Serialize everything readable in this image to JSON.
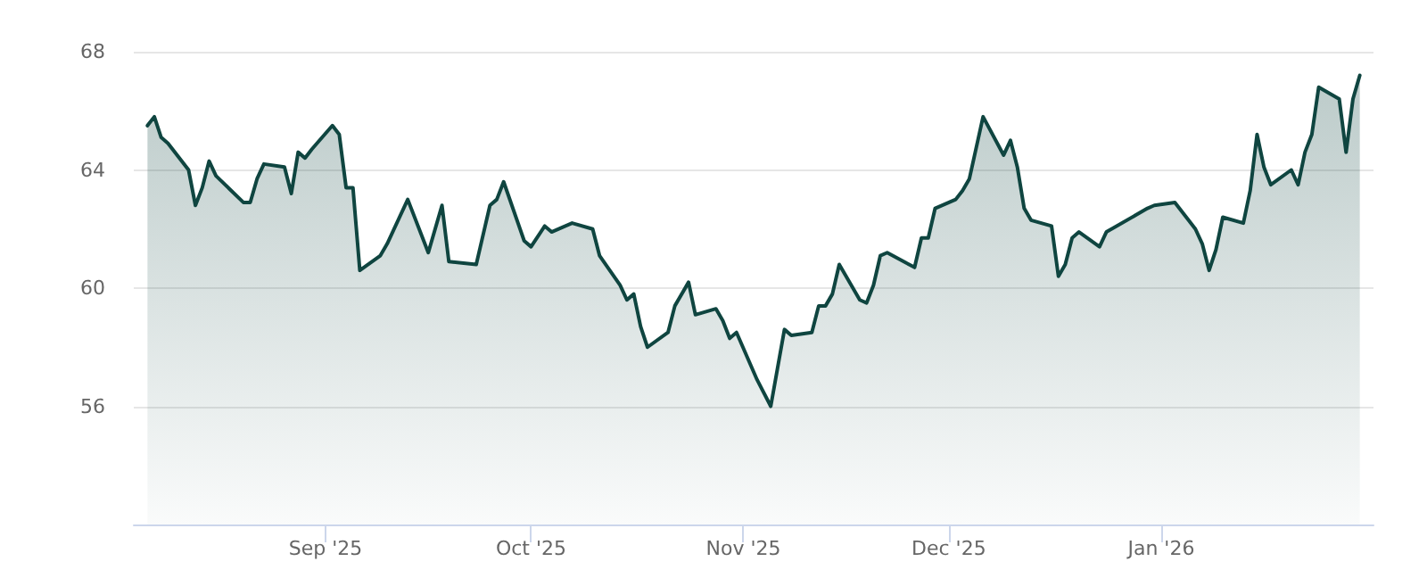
{
  "chart_data": {
    "type": "area",
    "x": [
      "2025-08-06",
      "2025-08-07",
      "2025-08-08",
      "2025-08-09",
      "2025-08-12",
      "2025-08-13",
      "2025-08-14",
      "2025-08-15",
      "2025-08-16",
      "2025-08-20",
      "2025-08-21",
      "2025-08-22",
      "2025-08-23",
      "2025-08-26",
      "2025-08-27",
      "2025-08-28",
      "2025-08-29",
      "2025-08-30",
      "2025-09-02",
      "2025-09-03",
      "2025-09-04",
      "2025-09-05",
      "2025-09-06",
      "2025-09-09",
      "2025-09-10",
      "2025-09-13",
      "2025-09-16",
      "2025-09-18",
      "2025-09-19",
      "2025-09-23",
      "2025-09-25",
      "2025-09-26",
      "2025-09-27",
      "2025-09-30",
      "2025-10-01",
      "2025-10-03",
      "2025-10-04",
      "2025-10-07",
      "2025-10-10",
      "2025-10-11",
      "2025-10-14",
      "2025-10-15",
      "2025-10-16",
      "2025-10-17",
      "2025-10-18",
      "2025-10-21",
      "2025-10-22",
      "2025-10-24",
      "2025-10-25",
      "2025-10-28",
      "2025-10-29",
      "2025-10-30",
      "2025-10-31",
      "2025-11-03",
      "2025-11-05",
      "2025-11-06",
      "2025-11-07",
      "2025-11-08",
      "2025-11-11",
      "2025-11-12",
      "2025-11-13",
      "2025-11-14",
      "2025-11-15",
      "2025-11-18",
      "2025-11-19",
      "2025-11-20",
      "2025-11-21",
      "2025-11-22",
      "2025-11-26",
      "2025-11-27",
      "2025-11-28",
      "2025-11-29",
      "2025-12-02",
      "2025-12-03",
      "2025-12-04",
      "2025-12-06",
      "2025-12-09",
      "2025-12-10",
      "2025-12-11",
      "2025-12-12",
      "2025-12-13",
      "2025-12-16",
      "2025-12-17",
      "2025-12-18",
      "2025-12-19",
      "2025-12-20",
      "2025-12-23",
      "2025-12-24",
      "2025-12-30",
      "2025-12-31",
      "2026-01-03",
      "2026-01-06",
      "2026-01-07",
      "2026-01-08",
      "2026-01-09",
      "2026-01-10",
      "2026-01-13",
      "2026-01-14",
      "2026-01-15",
      "2026-01-16",
      "2026-01-17",
      "2026-01-20",
      "2026-01-21",
      "2026-01-22",
      "2026-01-23",
      "2026-01-24",
      "2026-01-27",
      "2026-01-28",
      "2026-01-29",
      "2026-01-30"
    ],
    "series": [
      {
        "color": "#0f4540",
        "values": [
          65.5,
          65.8,
          65.1,
          64.9,
          64.0,
          62.8,
          63.4,
          64.3,
          63.8,
          62.9,
          62.9,
          63.7,
          64.2,
          64.1,
          63.2,
          64.6,
          64.4,
          64.7,
          65.5,
          65.2,
          63.4,
          63.4,
          60.6,
          61.1,
          61.5,
          63.0,
          61.2,
          62.8,
          60.9,
          60.8,
          62.8,
          63.0,
          63.6,
          61.6,
          61.4,
          62.1,
          61.9,
          62.2,
          62.0,
          61.1,
          60.1,
          59.6,
          59.8,
          58.7,
          58.0,
          58.5,
          59.4,
          60.2,
          59.1,
          59.3,
          58.9,
          58.3,
          58.5,
          56.9,
          56.0,
          57.3,
          58.6,
          58.4,
          58.5,
          59.4,
          59.4,
          59.8,
          60.8,
          59.6,
          59.5,
          60.1,
          61.1,
          61.2,
          60.7,
          61.7,
          61.7,
          62.7,
          63.0,
          63.3,
          63.7,
          65.8,
          64.5,
          65.0,
          64.1,
          62.7,
          62.3,
          62.1,
          60.4,
          60.8,
          61.7,
          61.9,
          61.4,
          61.9,
          62.7,
          62.8,
          62.9,
          62.0,
          61.5,
          60.6,
          61.3,
          62.4,
          62.2,
          63.3,
          65.2,
          64.1,
          63.5,
          64.0,
          63.5,
          64.6,
          65.2,
          66.8,
          66.4,
          64.6,
          66.4,
          67.2
        ]
      }
    ],
    "xlim": [
      "2025-08-04",
      "2026-02-01"
    ],
    "xticks": [
      {
        "value": "2025-09-01",
        "label": "Sep '25"
      },
      {
        "value": "2025-10-01",
        "label": "Oct '25"
      },
      {
        "value": "2025-11-01",
        "label": "Nov '25"
      },
      {
        "value": "2025-12-01",
        "label": "Dec '25"
      },
      {
        "value": "2026-01-01",
        "label": "Jan '26"
      }
    ],
    "ylim": [
      52,
      68
    ],
    "yticks": [
      56,
      60,
      64,
      68
    ],
    "grid": "y",
    "marker": "none",
    "line_style": "solid"
  }
}
